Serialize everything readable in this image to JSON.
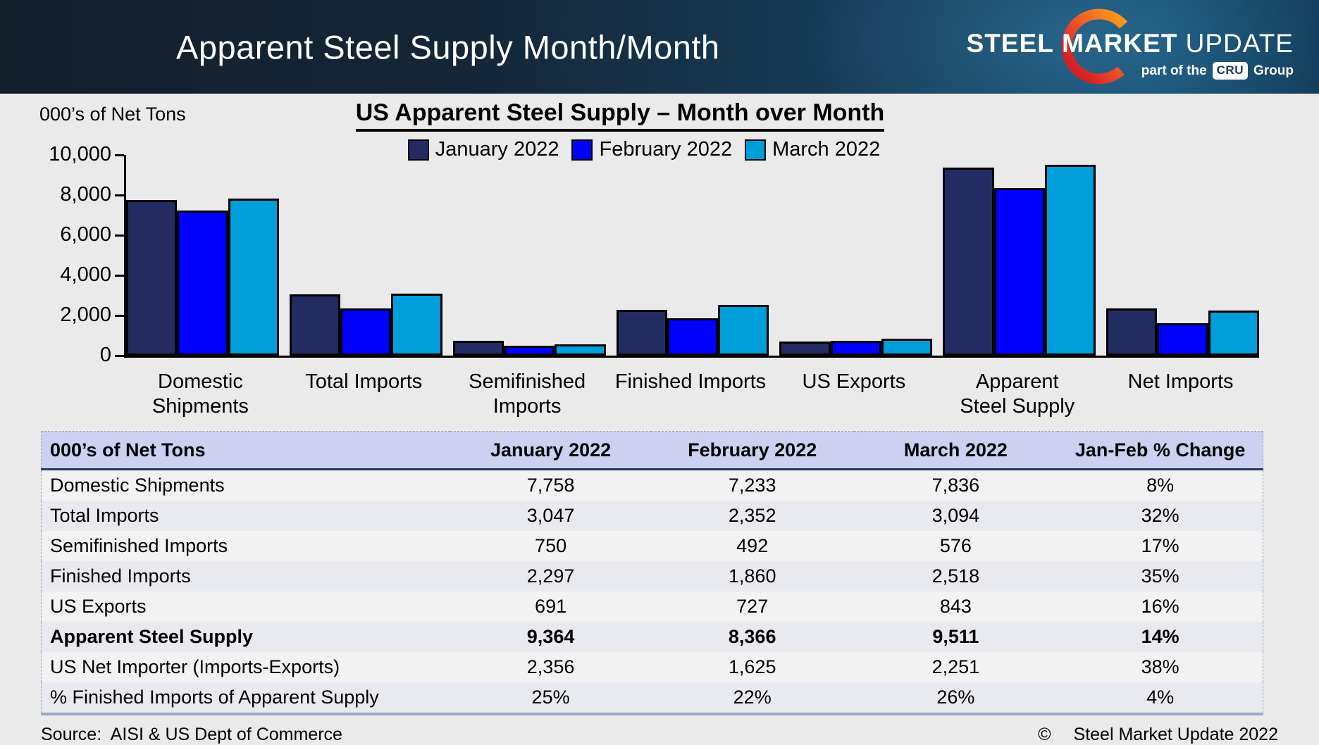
{
  "banner": {
    "title": "Apparent Steel Supply Month/Month",
    "logo": {
      "word1": "STEEL",
      "word2": "MARKET",
      "word3": "UPDATE",
      "tagline_prefix": "part of the",
      "cru": "CRU",
      "tagline_suffix": "Group",
      "crescent_orange": "#F7941E",
      "crescent_red": "#D31F26"
    }
  },
  "chart_data": {
    "type": "bar",
    "title": "US Apparent Steel Supply – Month over Month",
    "ylabel": "000’s of Net Tons",
    "categories": [
      "Domestic\nShipments",
      "Total Imports",
      "Semifinished\nImports",
      "Finished Imports",
      "US Exports",
      "Apparent\nSteel Supply",
      "Net Imports"
    ],
    "series": [
      {
        "name": "January 2022",
        "color": "#232C62",
        "values": [
          7758,
          3047,
          750,
          2297,
          691,
          9364,
          2356
        ]
      },
      {
        "name": "February 2022",
        "color": "#0000FE",
        "values": [
          7233,
          2352,
          492,
          1860,
          727,
          8366,
          1625
        ]
      },
      {
        "name": "March 2022",
        "color": "#009EDB",
        "values": [
          7836,
          3094,
          576,
          2518,
          843,
          9511,
          2251
        ]
      }
    ],
    "ylim": [
      0,
      10000
    ],
    "ytick_labels": [
      "10,000",
      "8,000",
      "6,000",
      "4,000",
      "2,000",
      "0"
    ],
    "grid": false,
    "legend_position": "top"
  },
  "table": {
    "headers": [
      "000’s of Net Tons",
      "January 2022",
      "February 2022",
      "March 2022",
      "Jan-Feb % Change"
    ],
    "rows": [
      {
        "label": "Domestic Shipments",
        "values": [
          "7,758",
          "7,233",
          "7,836",
          "8%"
        ],
        "bold": false
      },
      {
        "label": "Total Imports",
        "values": [
          "3,047",
          "2,352",
          "3,094",
          "32%"
        ],
        "bold": false
      },
      {
        "label": "Semifinished Imports",
        "values": [
          "750",
          "492",
          "576",
          "17%"
        ],
        "bold": false
      },
      {
        "label": "Finished Imports",
        "values": [
          "2,297",
          "1,860",
          "2,518",
          "35%"
        ],
        "bold": false
      },
      {
        "label": "US Exports",
        "values": [
          "691",
          "727",
          "843",
          "16%"
        ],
        "bold": false
      },
      {
        "label": "Apparent Steel Supply",
        "values": [
          "9,364",
          "8,366",
          "9,511",
          "14%"
        ],
        "bold": true
      },
      {
        "label": "US Net Importer (Imports-Exports)",
        "values": [
          "2,356",
          "1,625",
          "2,251",
          "38%"
        ],
        "bold": false
      },
      {
        "label": "% Finished Imports of Apparent Supply",
        "values": [
          "25%",
          "22%",
          "26%",
          "4%"
        ],
        "bold": false
      }
    ]
  },
  "footer": {
    "source": "Source:  AISI & US Dept of Commerce",
    "copyright_symbol": "©",
    "credit": "Steel Market Update 2022"
  }
}
